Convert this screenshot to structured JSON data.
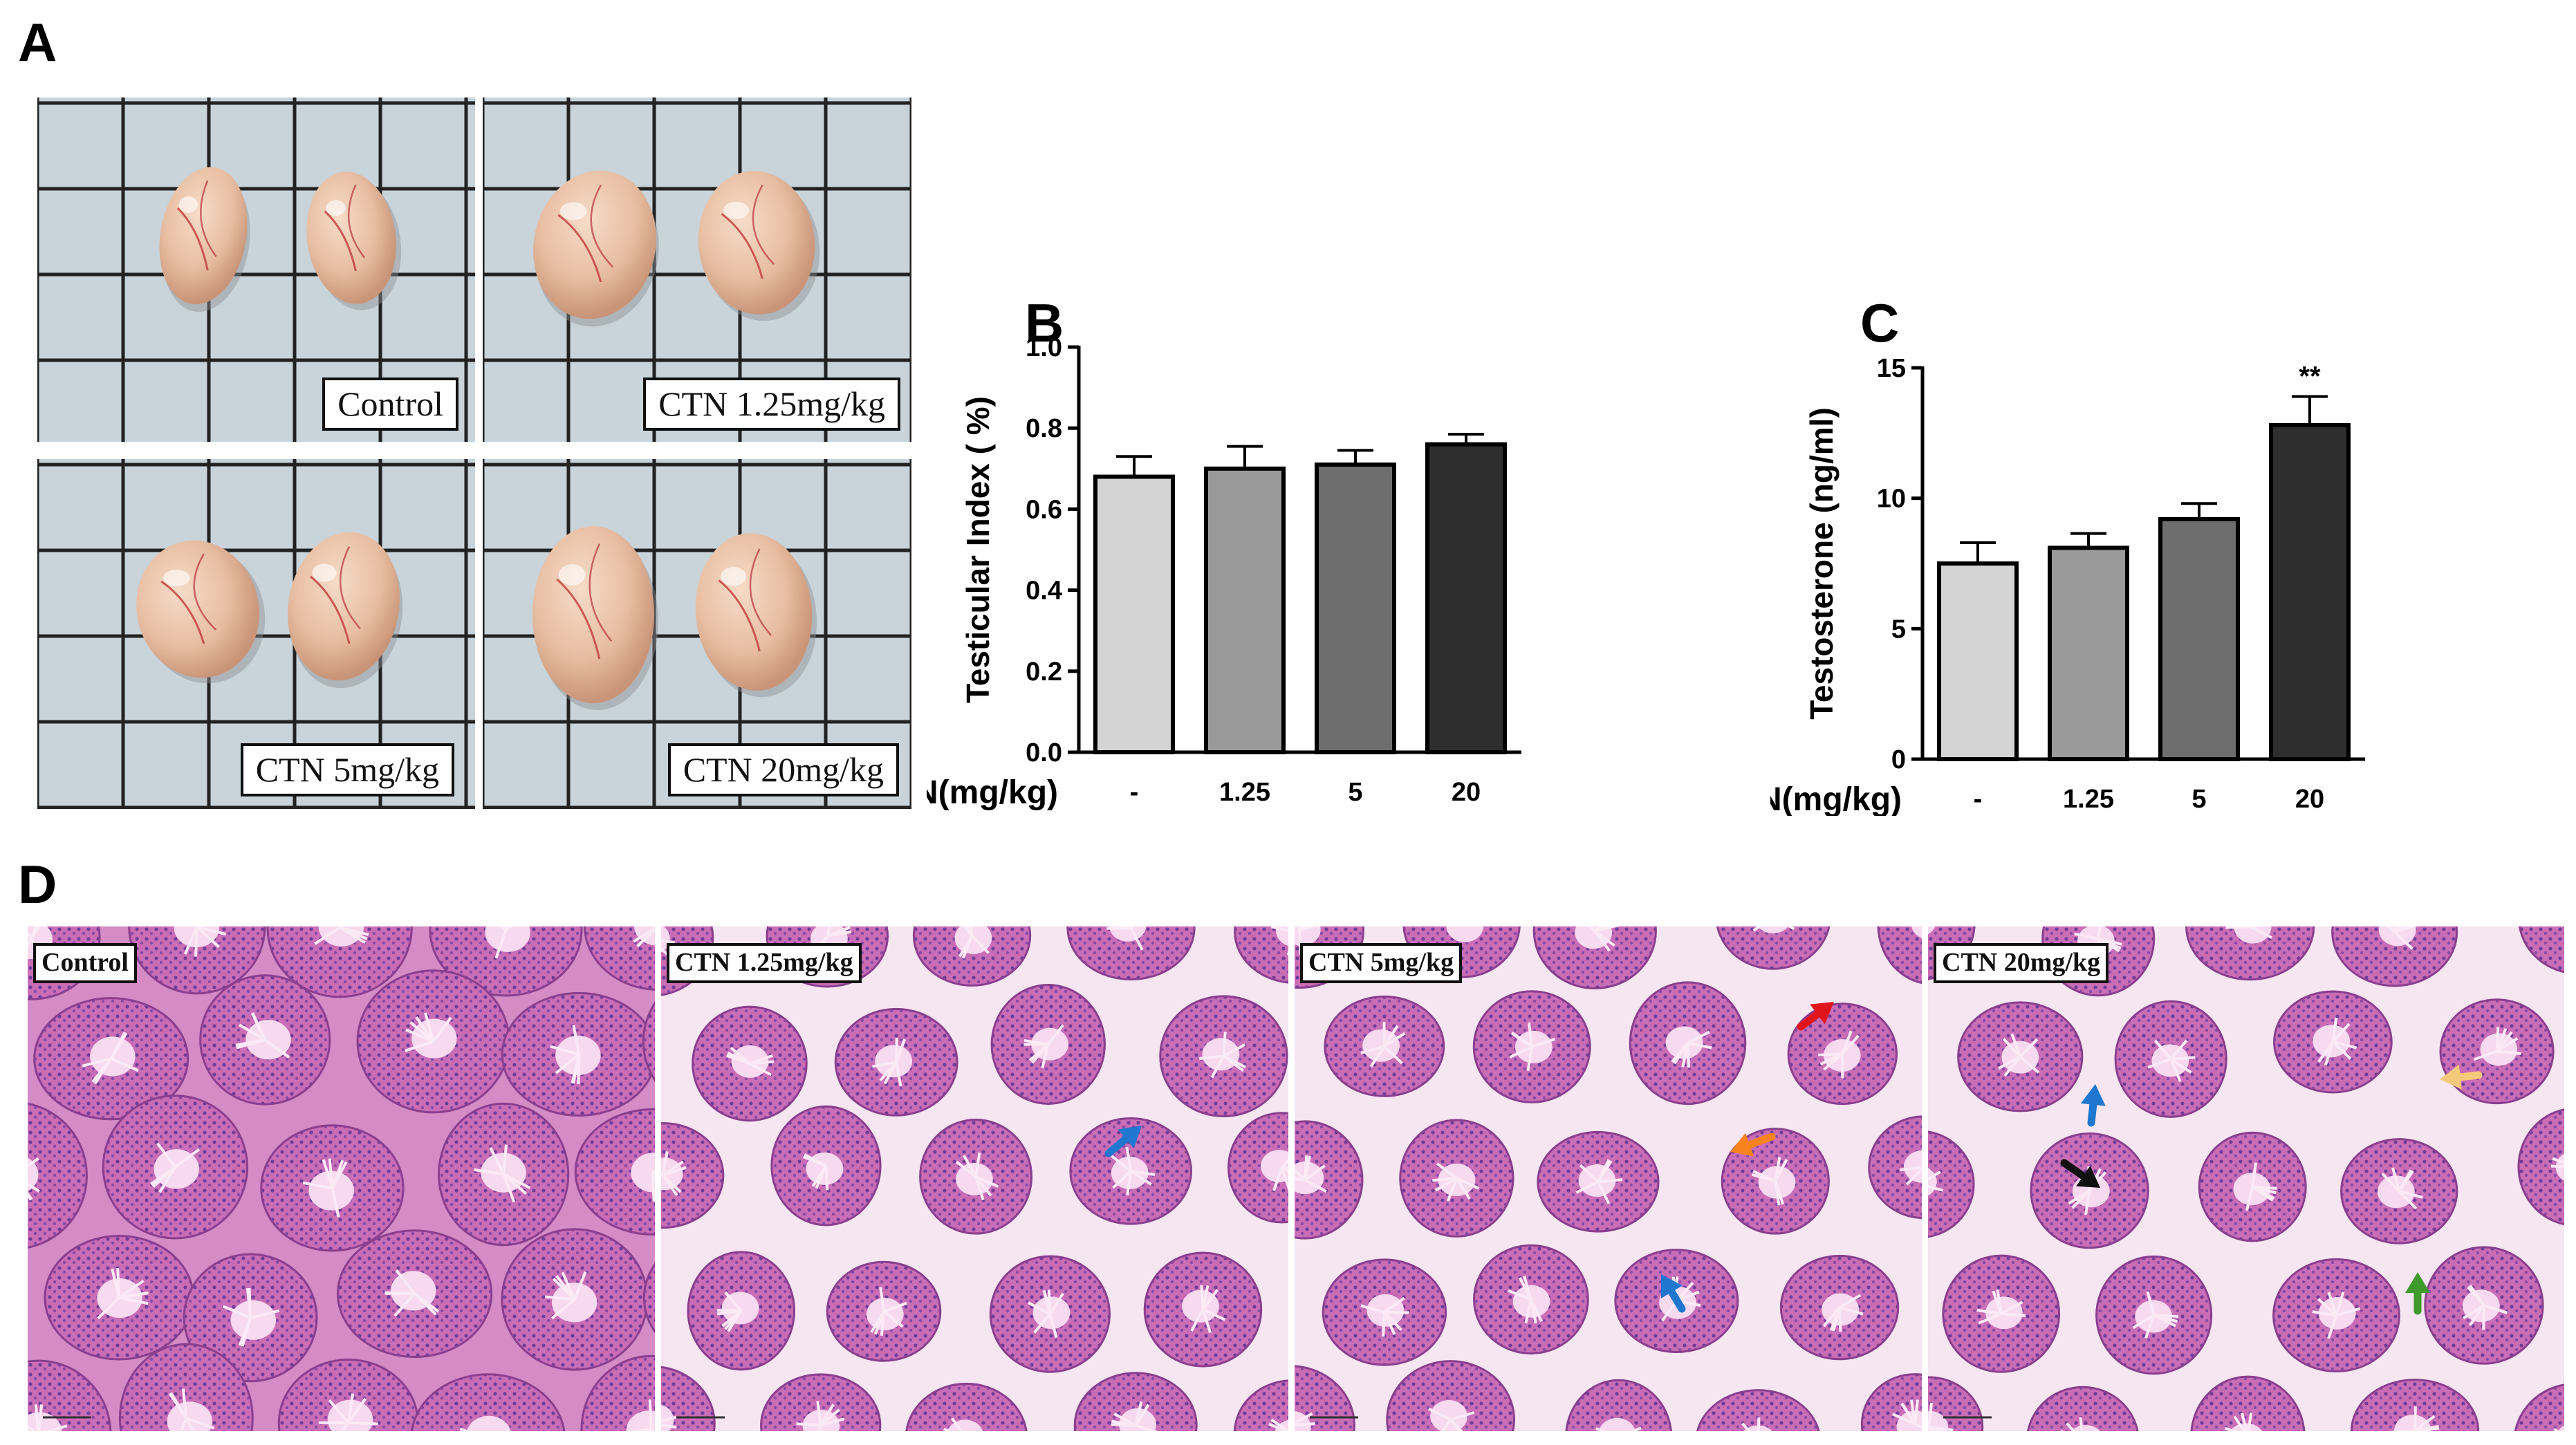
{
  "panels": {
    "A": {
      "letter": "A",
      "photos": [
        {
          "label": "Control"
        },
        {
          "label": "CTN 1.25mg/kg"
        },
        {
          "label": "CTN 5mg/kg"
        },
        {
          "label": "CTN 20mg/kg"
        }
      ]
    },
    "B": {
      "letter": "B"
    },
    "C": {
      "letter": "C"
    },
    "D": {
      "letter": "D",
      "images": [
        {
          "label": "Control"
        },
        {
          "label": "CTN 1.25mg/kg"
        },
        {
          "label": "CTN 5mg/kg"
        },
        {
          "label": "CTN 20mg/kg"
        }
      ],
      "arrow_colors": {
        "blue": "#1f77d0",
        "red": "#e0141b",
        "orange": "#f7831e",
        "black": "#111111",
        "yellow": "#f5c97a",
        "green": "#3d9a2b"
      }
    }
  },
  "colors": {
    "bar1": "#d4d4d4",
    "bar2": "#9a9a9a",
    "bar3": "#6e6e6e",
    "bar4": "#2e2e2e"
  },
  "chart_data": [
    {
      "type": "bar",
      "categories": [
        "-",
        "1.25",
        "5",
        "20"
      ],
      "values": [
        0.68,
        0.7,
        0.71,
        0.76
      ],
      "errors": [
        0.05,
        0.055,
        0.035,
        0.025
      ],
      "xlabel": "CTN(mg/kg)",
      "ylabel": "Testicular Index ( %)",
      "ylim": [
        0.0,
        1.0
      ],
      "yticks": [
        "0.0",
        "0.2",
        "0.4",
        "0.6",
        "0.8",
        "1.0"
      ],
      "annotations": [
        "",
        "",
        "",
        ""
      ]
    },
    {
      "type": "bar",
      "categories": [
        "-",
        "1.25",
        "5",
        "20"
      ],
      "values": [
        7.5,
        8.1,
        9.2,
        12.8
      ],
      "errors": [
        0.8,
        0.55,
        0.6,
        1.1
      ],
      "xlabel": "CTN(mg/kg)",
      "ylabel": "Testosterone (ng/ml)",
      "ylim": [
        0,
        15
      ],
      "yticks": [
        "0",
        "5",
        "10",
        "15"
      ],
      "annotations": [
        "",
        "",
        "",
        "**"
      ]
    }
  ]
}
